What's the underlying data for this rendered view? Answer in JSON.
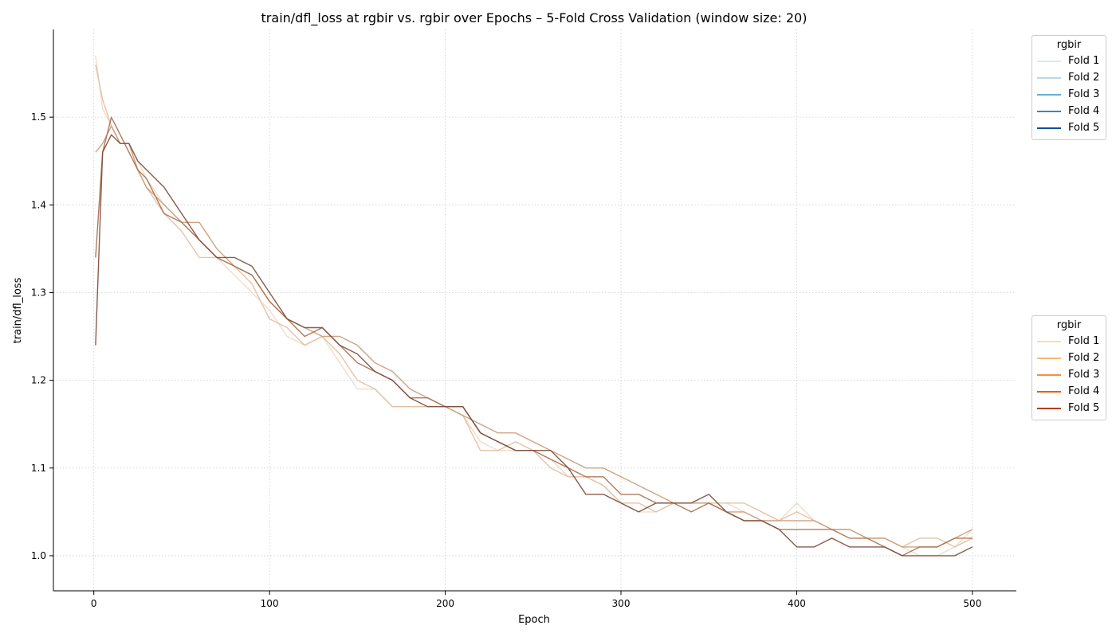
{
  "chart_data": {
    "type": "line",
    "title": "train/dfl_loss at rgbir vs. rgbir over Epochs – 5-Fold Cross Validation (window size: 20)",
    "xlabel": "Epoch",
    "ylabel": "train/dfl_loss",
    "xlim": [
      -23,
      525
    ],
    "ylim": [
      0.96,
      1.6
    ],
    "xticks": [
      0,
      100,
      200,
      300,
      400,
      500
    ],
    "yticks": [
      1.0,
      1.1,
      1.2,
      1.3,
      1.4,
      1.5
    ],
    "grid": true,
    "legends": [
      {
        "placement": "top-right-outside",
        "title": "rgbir",
        "entries": [
          {
            "label": "Fold 1",
            "color": "#dbe9f6"
          },
          {
            "label": "Fold 2",
            "color": "#bad6eb"
          },
          {
            "label": "Fold 3",
            "color": "#6aaed6"
          },
          {
            "label": "Fold 4",
            "color": "#3787c0"
          },
          {
            "label": "Fold 5",
            "color": "#08519c"
          }
        ]
      },
      {
        "placement": "middle-right-outside",
        "title": "rgbir",
        "entries": [
          {
            "label": "Fold 1",
            "color": "#fdd9b4"
          },
          {
            "label": "Fold 2",
            "color": "#fdb97d"
          },
          {
            "label": "Fold 3",
            "color": "#fd8c3b"
          },
          {
            "label": "Fold 4",
            "color": "#e95e0d"
          },
          {
            "label": "Fold 5",
            "color": "#b63c02"
          }
        ]
      }
    ],
    "series": [
      {
        "color": "#f0d8c4",
        "x": [
          1,
          5,
          10,
          15,
          20,
          25,
          30,
          40,
          50,
          60,
          70,
          80,
          90,
          100,
          110,
          120,
          130,
          140,
          150,
          160,
          170,
          180,
          190,
          200,
          210,
          220,
          230,
          240,
          250,
          260,
          270,
          280,
          290,
          300,
          310,
          320,
          330,
          340,
          350,
          360,
          370,
          380,
          390,
          400,
          410,
          420,
          430,
          440,
          450,
          460,
          470,
          480,
          490,
          500
        ],
        "y": [
          1.57,
          1.51,
          1.49,
          1.47,
          1.47,
          1.45,
          1.43,
          1.4,
          1.38,
          1.36,
          1.34,
          1.32,
          1.3,
          1.28,
          1.25,
          1.24,
          1.25,
          1.22,
          1.19,
          1.19,
          1.17,
          1.17,
          1.17,
          1.17,
          1.16,
          1.13,
          1.12,
          1.12,
          1.12,
          1.11,
          1.09,
          1.09,
          1.08,
          1.06,
          1.05,
          1.05,
          1.06,
          1.06,
          1.06,
          1.06,
          1.05,
          1.04,
          1.04,
          1.06,
          1.04,
          1.03,
          1.03,
          1.02,
          1.02,
          1.01,
          1.0,
          1.0,
          1.01,
          1.03
        ]
      },
      {
        "color": "#e2bc9e",
        "x": [
          1,
          5,
          10,
          15,
          20,
          25,
          30,
          40,
          50,
          60,
          70,
          80,
          90,
          100,
          110,
          120,
          130,
          140,
          150,
          160,
          170,
          180,
          190,
          200,
          210,
          220,
          230,
          240,
          250,
          260,
          270,
          280,
          290,
          300,
          310,
          320,
          330,
          340,
          350,
          360,
          370,
          380,
          390,
          400,
          410,
          420,
          430,
          440,
          450,
          460,
          470,
          480,
          490,
          500
        ],
        "y": [
          1.56,
          1.52,
          1.49,
          1.47,
          1.47,
          1.44,
          1.42,
          1.39,
          1.37,
          1.34,
          1.34,
          1.33,
          1.31,
          1.27,
          1.26,
          1.24,
          1.25,
          1.23,
          1.2,
          1.19,
          1.17,
          1.17,
          1.17,
          1.17,
          1.16,
          1.12,
          1.12,
          1.13,
          1.12,
          1.1,
          1.09,
          1.09,
          1.08,
          1.06,
          1.06,
          1.05,
          1.06,
          1.06,
          1.06,
          1.06,
          1.06,
          1.05,
          1.04,
          1.05,
          1.04,
          1.03,
          1.03,
          1.02,
          1.02,
          1.01,
          1.02,
          1.02,
          1.01,
          1.02
        ]
      },
      {
        "color": "#c99a77",
        "x": [
          1,
          5,
          10,
          15,
          20,
          25,
          30,
          40,
          50,
          60,
          70,
          80,
          90,
          100,
          110,
          120,
          130,
          140,
          150,
          160,
          170,
          180,
          190,
          200,
          210,
          220,
          230,
          240,
          250,
          260,
          270,
          280,
          290,
          300,
          310,
          320,
          330,
          340,
          350,
          360,
          370,
          380,
          390,
          400,
          410,
          420,
          430,
          440,
          450,
          460,
          470,
          480,
          490,
          500
        ],
        "y": [
          1.46,
          1.47,
          1.49,
          1.47,
          1.47,
          1.44,
          1.42,
          1.4,
          1.38,
          1.38,
          1.35,
          1.33,
          1.32,
          1.29,
          1.27,
          1.26,
          1.25,
          1.25,
          1.24,
          1.22,
          1.21,
          1.19,
          1.18,
          1.17,
          1.16,
          1.15,
          1.14,
          1.14,
          1.13,
          1.12,
          1.11,
          1.1,
          1.1,
          1.09,
          1.08,
          1.07,
          1.06,
          1.06,
          1.06,
          1.05,
          1.05,
          1.04,
          1.04,
          1.04,
          1.04,
          1.03,
          1.03,
          1.02,
          1.02,
          1.01,
          1.01,
          1.01,
          1.02,
          1.03
        ]
      },
      {
        "color": "#a86b49",
        "x": [
          1,
          5,
          10,
          15,
          20,
          25,
          30,
          40,
          50,
          60,
          70,
          80,
          90,
          100,
          110,
          120,
          130,
          140,
          150,
          160,
          170,
          180,
          190,
          200,
          210,
          220,
          230,
          240,
          250,
          260,
          270,
          280,
          290,
          300,
          310,
          320,
          330,
          340,
          350,
          360,
          370,
          380,
          390,
          400,
          410,
          420,
          430,
          440,
          450,
          460,
          470,
          480,
          490,
          500
        ],
        "y": [
          1.34,
          1.46,
          1.5,
          1.48,
          1.46,
          1.44,
          1.43,
          1.39,
          1.38,
          1.36,
          1.34,
          1.33,
          1.32,
          1.29,
          1.27,
          1.25,
          1.26,
          1.24,
          1.22,
          1.21,
          1.2,
          1.18,
          1.18,
          1.17,
          1.17,
          1.14,
          1.13,
          1.12,
          1.12,
          1.11,
          1.1,
          1.09,
          1.09,
          1.07,
          1.07,
          1.06,
          1.06,
          1.05,
          1.06,
          1.05,
          1.04,
          1.04,
          1.03,
          1.03,
          1.03,
          1.03,
          1.02,
          1.02,
          1.01,
          1.0,
          1.01,
          1.01,
          1.02,
          1.02
        ]
      },
      {
        "color": "#7b4a3a",
        "x": [
          1,
          5,
          10,
          15,
          20,
          25,
          30,
          40,
          50,
          60,
          70,
          80,
          90,
          100,
          110,
          120,
          130,
          140,
          150,
          160,
          170,
          180,
          190,
          200,
          210,
          220,
          230,
          240,
          250,
          260,
          270,
          280,
          290,
          300,
          310,
          320,
          330,
          340,
          350,
          360,
          370,
          380,
          390,
          400,
          410,
          420,
          430,
          440,
          450,
          460,
          470,
          480,
          490,
          500
        ],
        "y": [
          1.24,
          1.46,
          1.48,
          1.47,
          1.47,
          1.45,
          1.44,
          1.42,
          1.39,
          1.36,
          1.34,
          1.34,
          1.33,
          1.3,
          1.27,
          1.26,
          1.26,
          1.24,
          1.23,
          1.21,
          1.2,
          1.18,
          1.17,
          1.17,
          1.17,
          1.14,
          1.13,
          1.12,
          1.12,
          1.12,
          1.1,
          1.07,
          1.07,
          1.06,
          1.05,
          1.06,
          1.06,
          1.06,
          1.07,
          1.05,
          1.04,
          1.04,
          1.03,
          1.01,
          1.01,
          1.02,
          1.01,
          1.01,
          1.01,
          1.0,
          1.0,
          1.0,
          1.0,
          1.01
        ]
      }
    ]
  }
}
